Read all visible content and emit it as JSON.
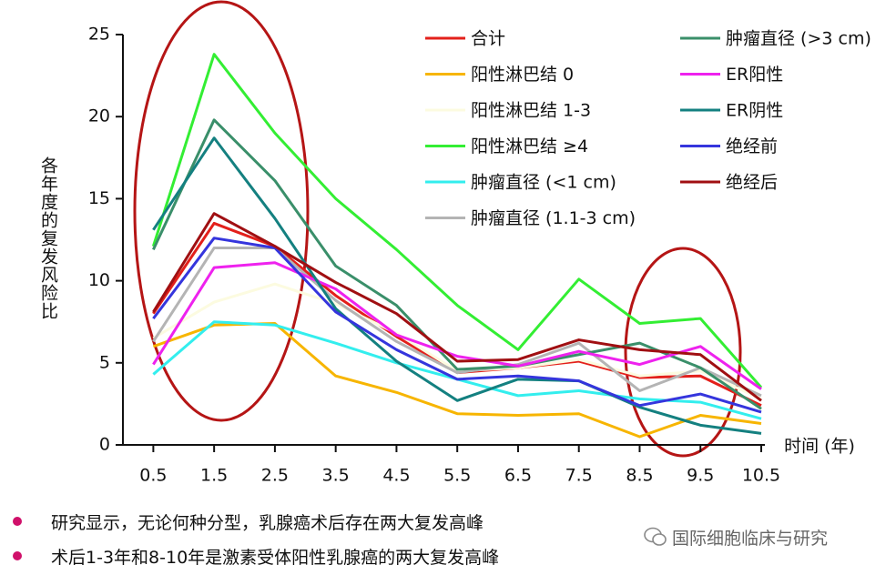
{
  "chart_data": {
    "type": "line",
    "x_label": "时间 (年)",
    "y_label": "各年度的复发风险比",
    "x": [
      0.5,
      1.5,
      2.5,
      3.5,
      4.5,
      5.5,
      6.5,
      7.5,
      8.5,
      9.5,
      10.5
    ],
    "xlim": [
      0,
      10.5
    ],
    "xticks": [
      0.5,
      1.5,
      2.5,
      3.5,
      4.5,
      5.5,
      6.5,
      7.5,
      8.5,
      9.5,
      10.5
    ],
    "ylim": [
      0,
      25
    ],
    "yticks": [
      0,
      5,
      10,
      15,
      20,
      25
    ],
    "grid": false,
    "legend": "top-right",
    "series": [
      {
        "name": "合计",
        "color": "#e3201b",
        "values": [
          8.0,
          13.5,
          12.1,
          9.1,
          6.6,
          4.4,
          4.7,
          5.1,
          4.1,
          4.2,
          2.4
        ]
      },
      {
        "name": "阳性淋巴结 0",
        "color": "#f7b500",
        "values": [
          6.0,
          7.3,
          7.4,
          4.2,
          3.2,
          1.9,
          1.8,
          1.9,
          0.5,
          1.8,
          1.3
        ]
      },
      {
        "name": "阳性淋巴结 1-3",
        "color": "#fcfbe0",
        "values": [
          6.5,
          8.7,
          9.8,
          8.6,
          6.8,
          4.5,
          4.7,
          5.2,
          4.2,
          4.5,
          2.8
        ]
      },
      {
        "name": "阳性淋巴结 ≥4",
        "color": "#33ee33",
        "values": [
          12.1,
          23.8,
          19.0,
          15.0,
          11.9,
          8.5,
          5.8,
          10.1,
          7.4,
          7.7,
          3.5
        ]
      },
      {
        "name": "肿瘤直径 (<1 cm)",
        "color": "#33eeee",
        "values": [
          4.3,
          7.5,
          7.3,
          6.2,
          5.0,
          4.0,
          3.0,
          3.3,
          2.8,
          2.6,
          1.6
        ]
      },
      {
        "name": "肿瘤直径 (1.1-3 cm)",
        "color": "#b4b4b4",
        "values": [
          6.3,
          12.0,
          12.0,
          8.8,
          6.3,
          4.4,
          4.9,
          6.2,
          3.3,
          4.7,
          3.0
        ]
      },
      {
        "name": "肿瘤直径 (>3 cm)",
        "color": "#3a8f6a",
        "values": [
          11.9,
          19.8,
          16.1,
          10.9,
          8.5,
          4.6,
          4.8,
          5.5,
          6.2,
          4.7,
          2.2
        ]
      },
      {
        "name": "ER阳性",
        "color": "#ee22ee",
        "values": [
          4.9,
          10.8,
          11.1,
          9.5,
          6.7,
          5.4,
          4.8,
          5.7,
          4.9,
          6.0,
          3.4
        ]
      },
      {
        "name": "ER阴性",
        "color": "#148080",
        "values": [
          13.1,
          18.7,
          13.8,
          8.3,
          5.1,
          2.7,
          4.0,
          3.9,
          2.3,
          1.2,
          0.7
        ]
      },
      {
        "name": "绝经前",
        "color": "#3535dd",
        "values": [
          7.7,
          12.6,
          12.0,
          8.1,
          5.8,
          4.0,
          4.2,
          3.9,
          2.4,
          3.1,
          2.0
        ]
      },
      {
        "name": "绝经后",
        "color": "#a00f12",
        "values": [
          8.1,
          14.1,
          12.1,
          9.9,
          8.0,
          5.1,
          5.2,
          6.4,
          5.8,
          5.5,
          2.7
        ]
      }
    ]
  },
  "notes": [
    "研究显示，无论何种分型，乳腺癌术后存在两大复发高峰",
    "术后1-3年和8-10年是激素受体阳性乳腺癌的两大复发高峰"
  ],
  "watermark": "国际细胞临床与研究"
}
